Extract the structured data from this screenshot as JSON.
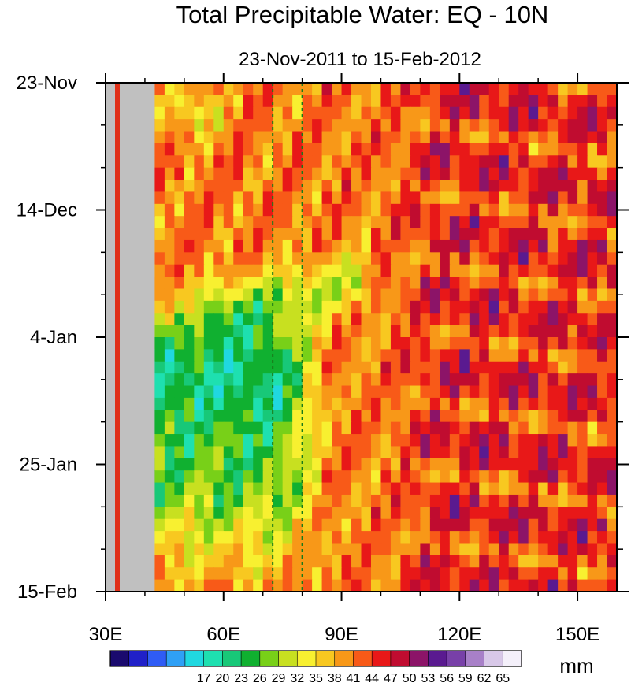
{
  "chart_data": {
    "type": "heatmap",
    "title": "Total Precipitable Water: EQ - 10N",
    "subtitle": "23-Nov-2011 to 15-Feb-2012",
    "xlim": [
      30,
      160
    ],
    "ylim_days": [
      0,
      84
    ],
    "x_ticks": [
      {
        "value": 30,
        "label": "30E"
      },
      {
        "value": 60,
        "label": "60E"
      },
      {
        "value": 90,
        "label": "90E"
      },
      {
        "value": 120,
        "label": "120E"
      },
      {
        "value": 150,
        "label": "150E"
      }
    ],
    "y_ticks": [
      {
        "day": 0,
        "label": "23-Nov"
      },
      {
        "day": 21,
        "label": "14-Dec"
      },
      {
        "day": 42,
        "label": "4-Jan"
      },
      {
        "day": 63,
        "label": "25-Jan"
      },
      {
        "day": 84,
        "label": "15-Feb"
      }
    ],
    "land_mask_lon": [
      30.5,
      42.5
    ],
    "reference_lines_lon": [
      72.5,
      80
    ],
    "colorbar": {
      "levels": [
        17,
        20,
        23,
        26,
        29,
        32,
        35,
        38,
        41,
        44,
        47,
        50,
        53,
        56,
        59,
        62,
        65
      ],
      "colors": [
        "#1a0a6e",
        "#2020c8",
        "#2f5cf5",
        "#2fa0f5",
        "#20d8e0",
        "#1ee0b0",
        "#18c878",
        "#10b030",
        "#78d018",
        "#c8e020",
        "#f8f030",
        "#f8c820",
        "#f89818",
        "#f85a18",
        "#e81818",
        "#c00c30",
        "#8c1468",
        "#5a1a90",
        "#7840a8",
        "#a880c8",
        "#d8c8e8",
        "#f4f0fa"
      ],
      "unit": "mm"
    }
  }
}
